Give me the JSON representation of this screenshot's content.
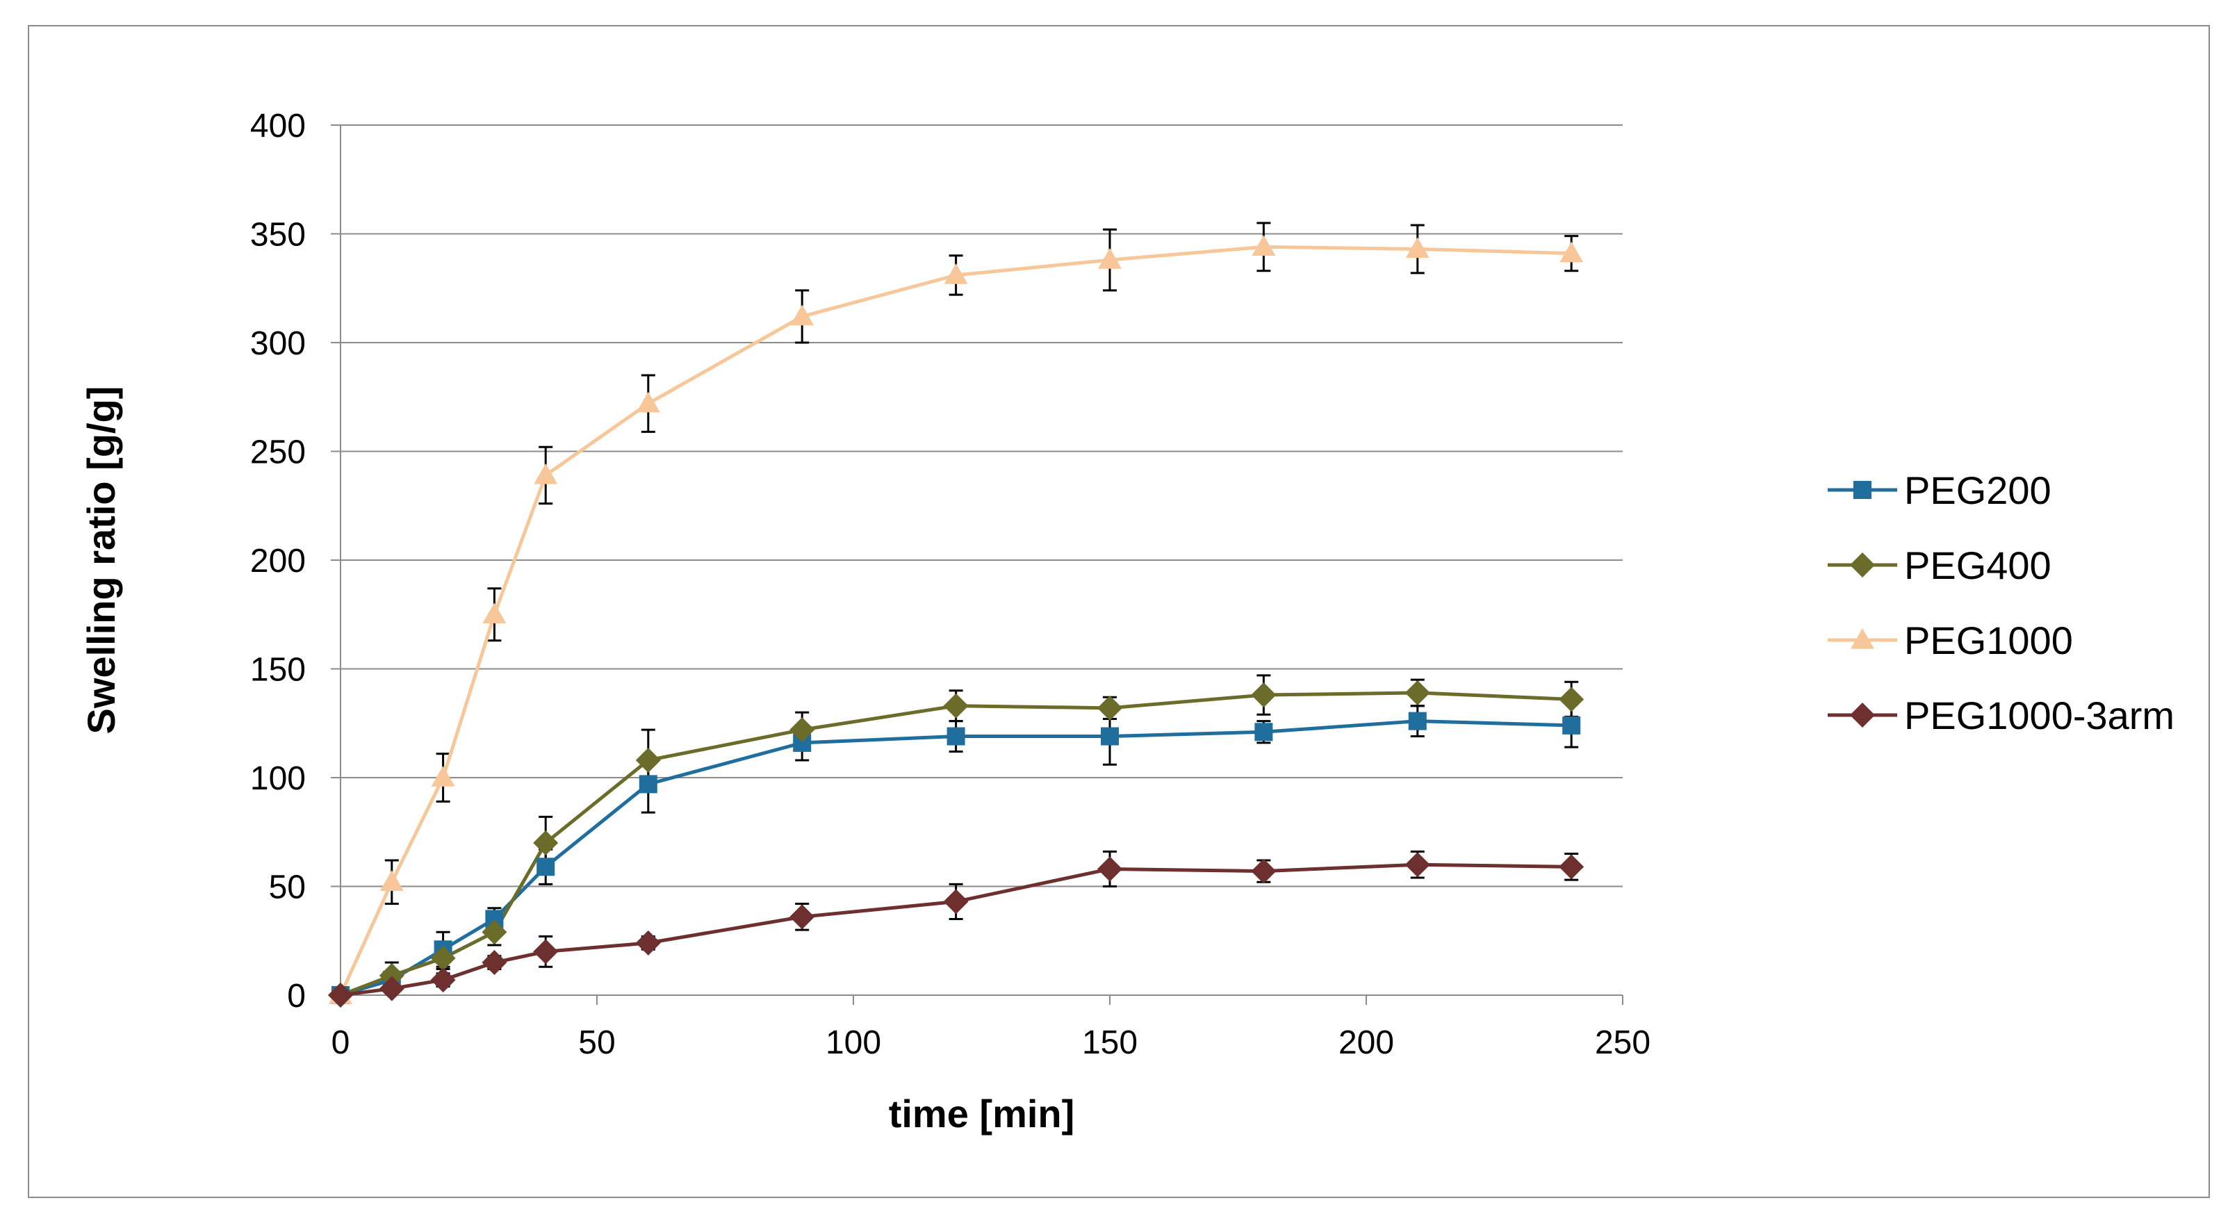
{
  "chart_data": {
    "type": "line",
    "title": "",
    "xlabel": "time [min]",
    "ylabel": "Swelling ratio [g/g]",
    "xlim": [
      0,
      250
    ],
    "ylim": [
      0,
      400
    ],
    "xticks": [
      0,
      50,
      100,
      150,
      200,
      250
    ],
    "yticks": [
      0,
      50,
      100,
      150,
      200,
      250,
      300,
      350,
      400
    ],
    "grid": "horizontal",
    "legend_position": "right",
    "x": [
      0,
      10,
      20,
      30,
      40,
      60,
      90,
      120,
      150,
      180,
      210,
      240
    ],
    "series": [
      {
        "name": "PEG200",
        "color": "#1f6e9e",
        "marker": "square",
        "values": [
          0,
          7,
          21,
          35,
          59,
          97,
          116,
          119,
          119,
          121,
          126,
          124
        ],
        "errors": [
          2,
          4,
          8,
          5,
          8,
          13,
          8,
          7,
          13,
          5,
          7,
          10
        ]
      },
      {
        "name": "PEG400",
        "color": "#6b6b2a",
        "marker": "diamond",
        "values": [
          0,
          9,
          17,
          29,
          70,
          108,
          122,
          133,
          132,
          138,
          139,
          136
        ],
        "errors": [
          2,
          6,
          5,
          6,
          12,
          14,
          8,
          7,
          5,
          9,
          6,
          8
        ]
      },
      {
        "name": "PEG1000",
        "color": "#f7c79a",
        "marker": "triangle",
        "values": [
          0,
          52,
          100,
          175,
          239,
          272,
          312,
          331,
          338,
          344,
          343,
          341
        ],
        "errors": [
          2,
          10,
          11,
          12,
          13,
          13,
          12,
          9,
          14,
          11,
          11,
          8
        ]
      },
      {
        "name": "PEG1000-3arm",
        "color": "#6e2f2f",
        "marker": "diamond",
        "values": [
          0,
          3,
          7,
          15,
          20,
          24,
          36,
          43,
          58,
          57,
          60,
          59
        ],
        "errors": [
          1,
          2,
          3,
          3,
          7,
          3,
          6,
          8,
          8,
          5,
          6,
          6
        ]
      }
    ]
  }
}
